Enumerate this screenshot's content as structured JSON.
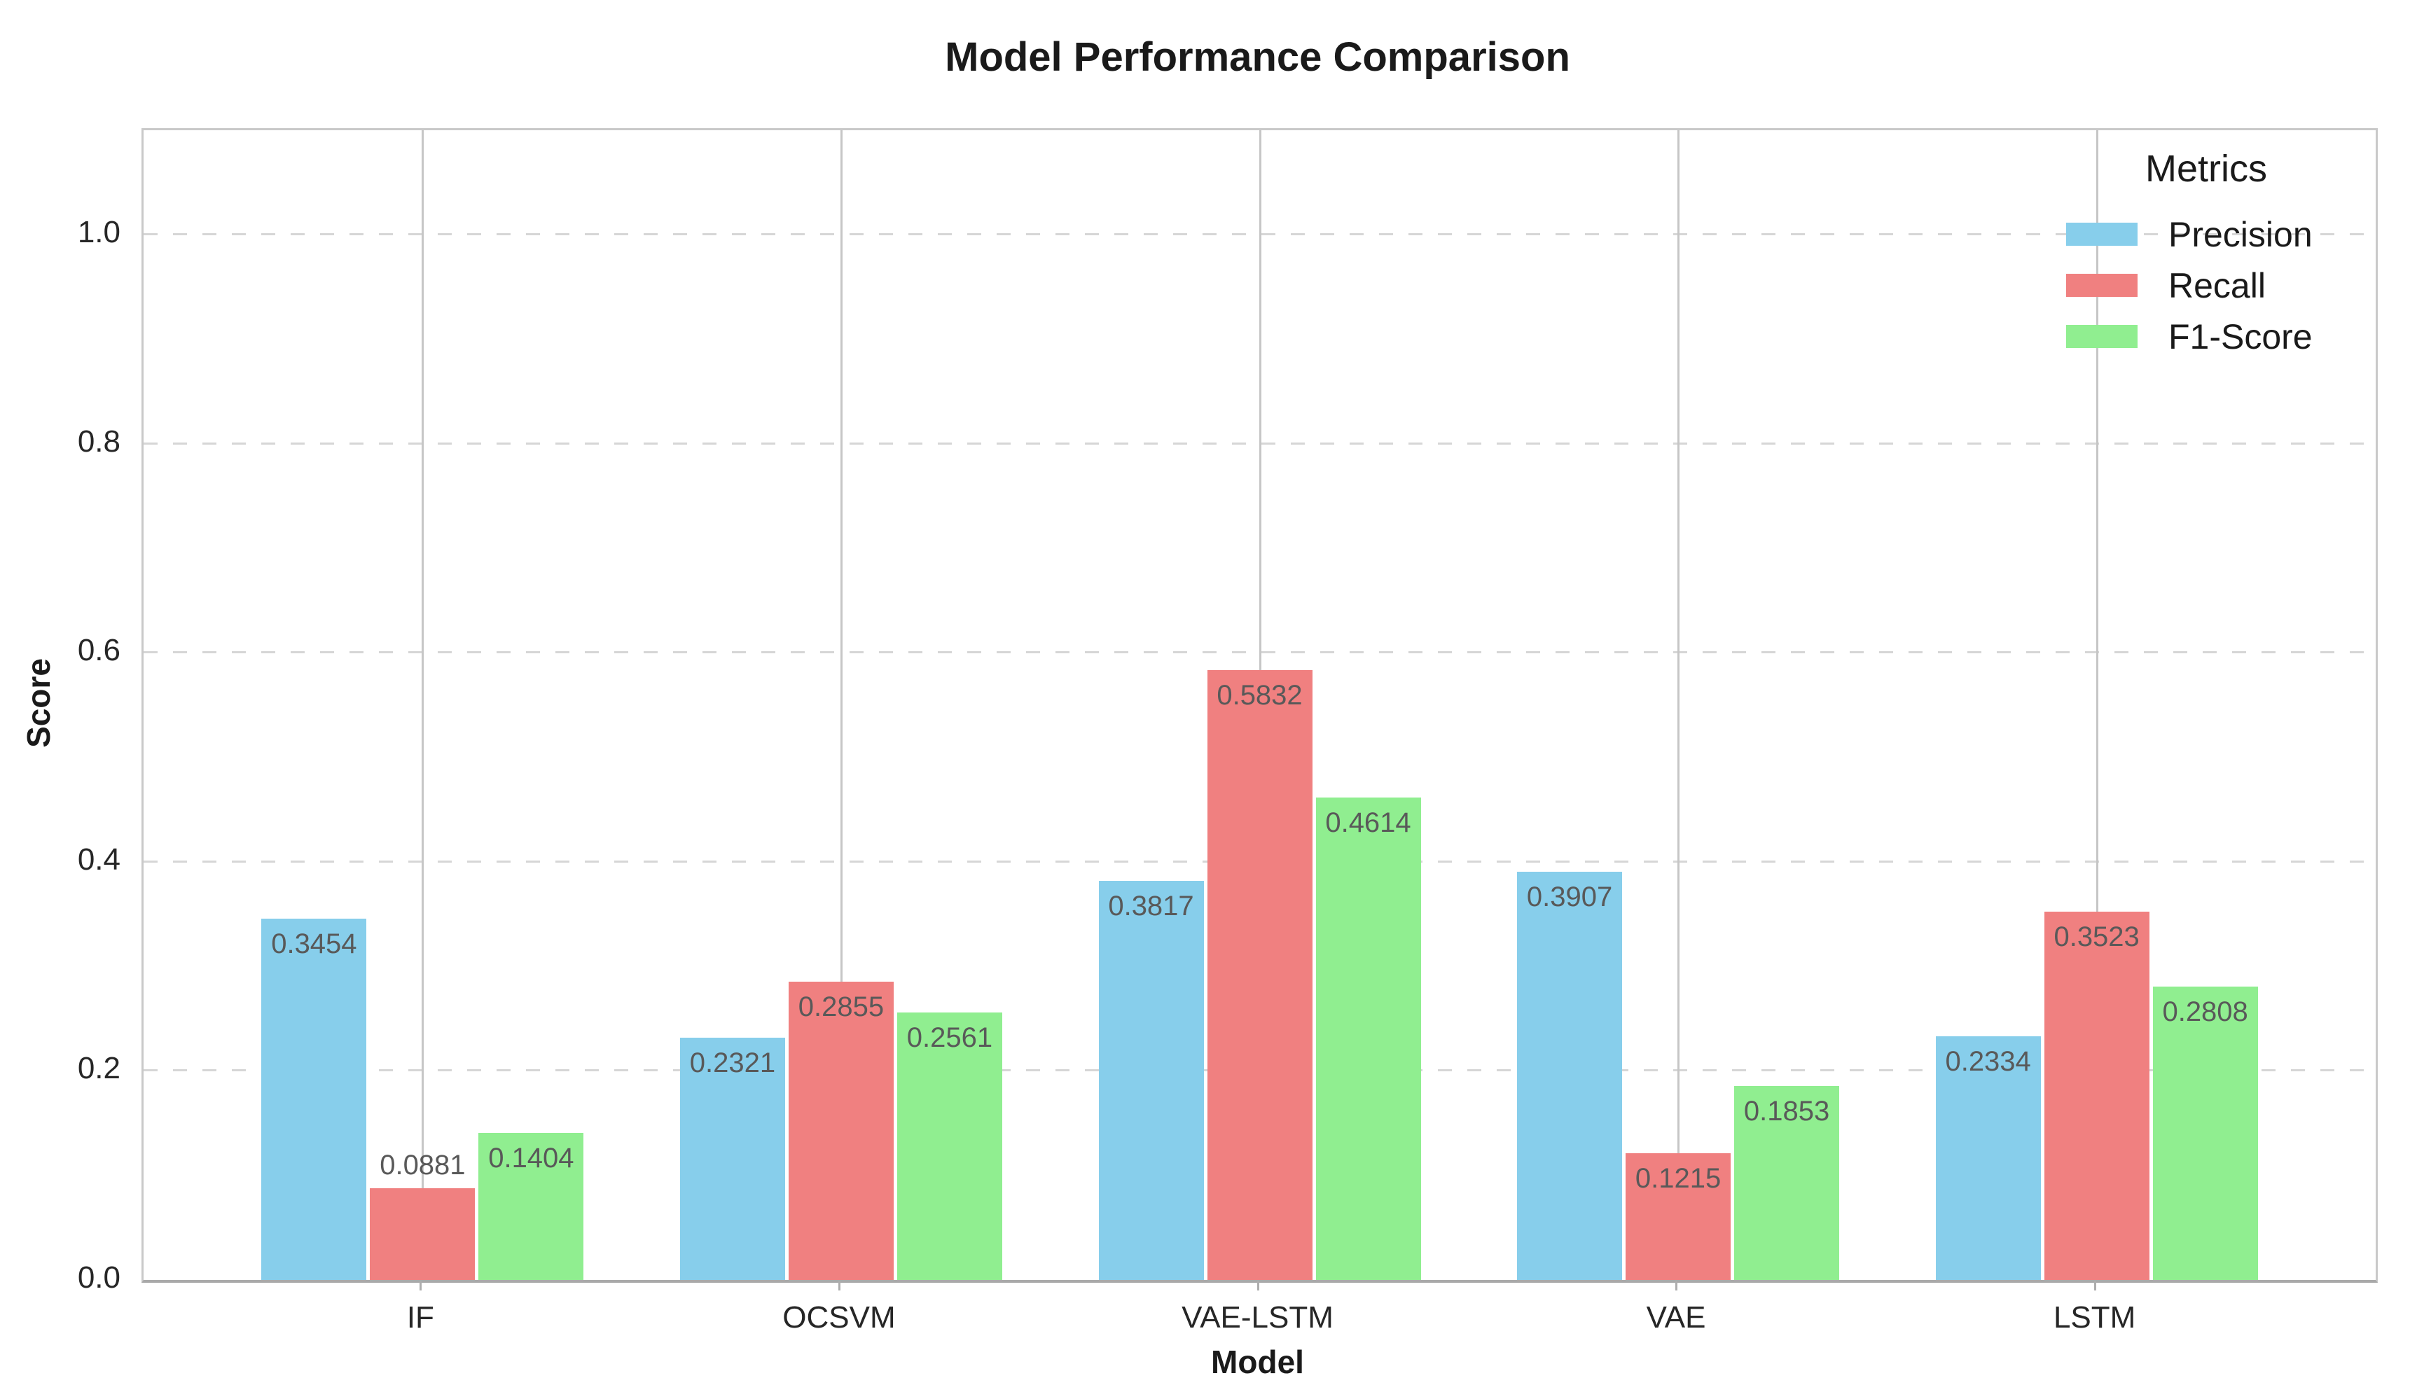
{
  "title": "Model Performance Comparison",
  "axes": {
    "x_label": "Model",
    "y_label": "Score",
    "y_max": 1.1
  },
  "legend": {
    "title": "Metrics",
    "entries": [
      {
        "label": "Precision",
        "color": "#87CEEB"
      },
      {
        "label": "Recall",
        "color": "#F08080"
      },
      {
        "label": "F1-Score",
        "color": "#90EE90"
      }
    ]
  },
  "chart_data": {
    "type": "bar",
    "title": "Model Performance Comparison",
    "xlabel": "Model",
    "ylabel": "Score",
    "categories": [
      "IF",
      "OCSVM",
      "VAE-LSTM",
      "VAE",
      "LSTM"
    ],
    "series": [
      {
        "name": "Precision",
        "color": "#87CEEB",
        "values": [
          0.3454,
          0.2321,
          0.3817,
          0.3907,
          0.2334
        ]
      },
      {
        "name": "Recall",
        "color": "#F08080",
        "values": [
          0.0881,
          0.2855,
          0.5832,
          0.1215,
          0.3523
        ]
      },
      {
        "name": "F1-Score",
        "color": "#90EE90",
        "values": [
          0.1404,
          0.2561,
          0.4614,
          0.1853,
          0.2808
        ]
      }
    ],
    "value_labels_decimals": 4,
    "label_above_threshold": 0.1,
    "ylim": [
      0,
      1.1
    ],
    "yticks": [
      0.0,
      0.2,
      0.4,
      0.6,
      0.8,
      1.0
    ],
    "grid": true,
    "legend_position": "upper right",
    "gridline_dashed_color": "#d6d6d6",
    "gridline_vertical_color": "#c6c6c6",
    "value_label_color": "#595959"
  }
}
